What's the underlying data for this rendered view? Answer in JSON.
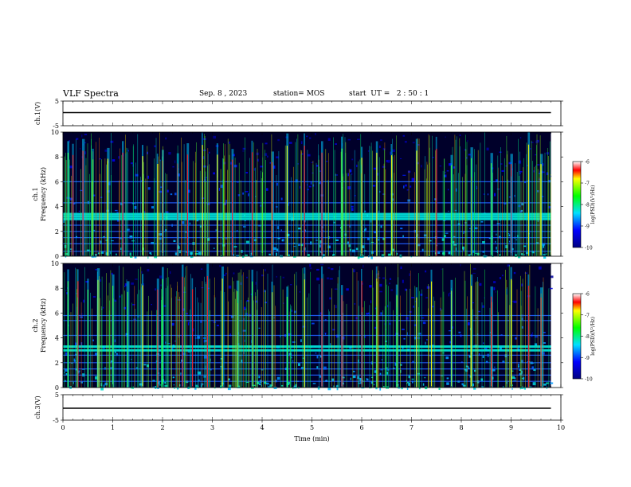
{
  "header": {
    "title": "VLF Spectra",
    "date": "Sep. 8 , 2023",
    "station": "station= MOS",
    "start": "start  UT =   2 : 50 : 1"
  },
  "chart_data": [
    {
      "type": "line",
      "ylabel": "ch.1(V)",
      "yticks": [
        "5",
        "-5"
      ],
      "ylim": [
        -5,
        5
      ],
      "series": [
        {
          "x": [
            0,
            9.8
          ],
          "values": [
            0,
            0
          ]
        }
      ]
    },
    {
      "type": "heatmap",
      "ylabel_top": "ch.1",
      "ylabel": "Frequency (kHz)",
      "yticks": [
        "0",
        "2",
        "4",
        "6",
        "8",
        "10"
      ],
      "ylim": [
        0,
        10
      ],
      "xlim": [
        0,
        9.8
      ],
      "colorbar": {
        "label": "log(PSD)(V²/Hz)",
        "ticks": [
          "-6",
          "-7",
          "-8",
          "-9",
          "-10"
        ],
        "range": [
          -10,
          -6
        ]
      },
      "bands_khz": [
        0.4,
        1.0,
        1.5,
        2.0,
        2.5,
        3.0,
        3.2,
        3.4,
        4.3,
        6.0
      ],
      "bursts_min": [
        0.1,
        0.2,
        0.4,
        0.6,
        0.9,
        1.2,
        1.6,
        1.9,
        2.0,
        2.3,
        2.5,
        2.8,
        3.1,
        3.4,
        3.8,
        4.2,
        4.5,
        4.85,
        5.2,
        5.6,
        6.0,
        6.3,
        6.6,
        7.1,
        7.5,
        7.8,
        8.2,
        8.6,
        9.0,
        9.35,
        9.6
      ]
    },
    {
      "type": "heatmap",
      "ylabel_top": "ch.2",
      "ylabel": "Frequency (kHz)",
      "yticks": [
        "0",
        "2",
        "4",
        "6",
        "8",
        "10"
      ],
      "ylim": [
        0,
        10
      ],
      "xlim": [
        0,
        9.8
      ],
      "colorbar": {
        "label": "log(PSD)(V²/Hz)",
        "ticks": [
          "-6",
          "-7",
          "-8",
          "-9",
          "-10"
        ],
        "range": [
          -10,
          -6
        ]
      },
      "bands_khz": [
        0.5,
        1.0,
        1.5,
        2.0,
        2.6,
        3.0,
        3.3,
        4.2,
        5.4,
        5.8
      ],
      "bursts_min": [
        0.1,
        0.3,
        0.5,
        0.7,
        1.0,
        1.3,
        1.6,
        1.9,
        2.0,
        2.4,
        2.6,
        2.9,
        3.2,
        3.5,
        3.8,
        4.2,
        4.5,
        4.85,
        5.2,
        5.6,
        6.0,
        6.3,
        6.7,
        7.1,
        7.4,
        7.8,
        8.2,
        8.6,
        9.0,
        9.35,
        9.6
      ]
    },
    {
      "type": "line",
      "ylabel": "ch.3(V)",
      "yticks": [
        "5",
        "-5"
      ],
      "ylim": [
        -5,
        5
      ],
      "series": [
        {
          "x": [
            0,
            9.8
          ],
          "values": [
            0,
            0
          ]
        }
      ]
    }
  ],
  "xaxis": {
    "label": "Time (min)",
    "ticks": [
      "0",
      "1",
      "2",
      "3",
      "4",
      "5",
      "6",
      "7",
      "8",
      "9",
      "10"
    ],
    "xlim": [
      0,
      10
    ]
  }
}
